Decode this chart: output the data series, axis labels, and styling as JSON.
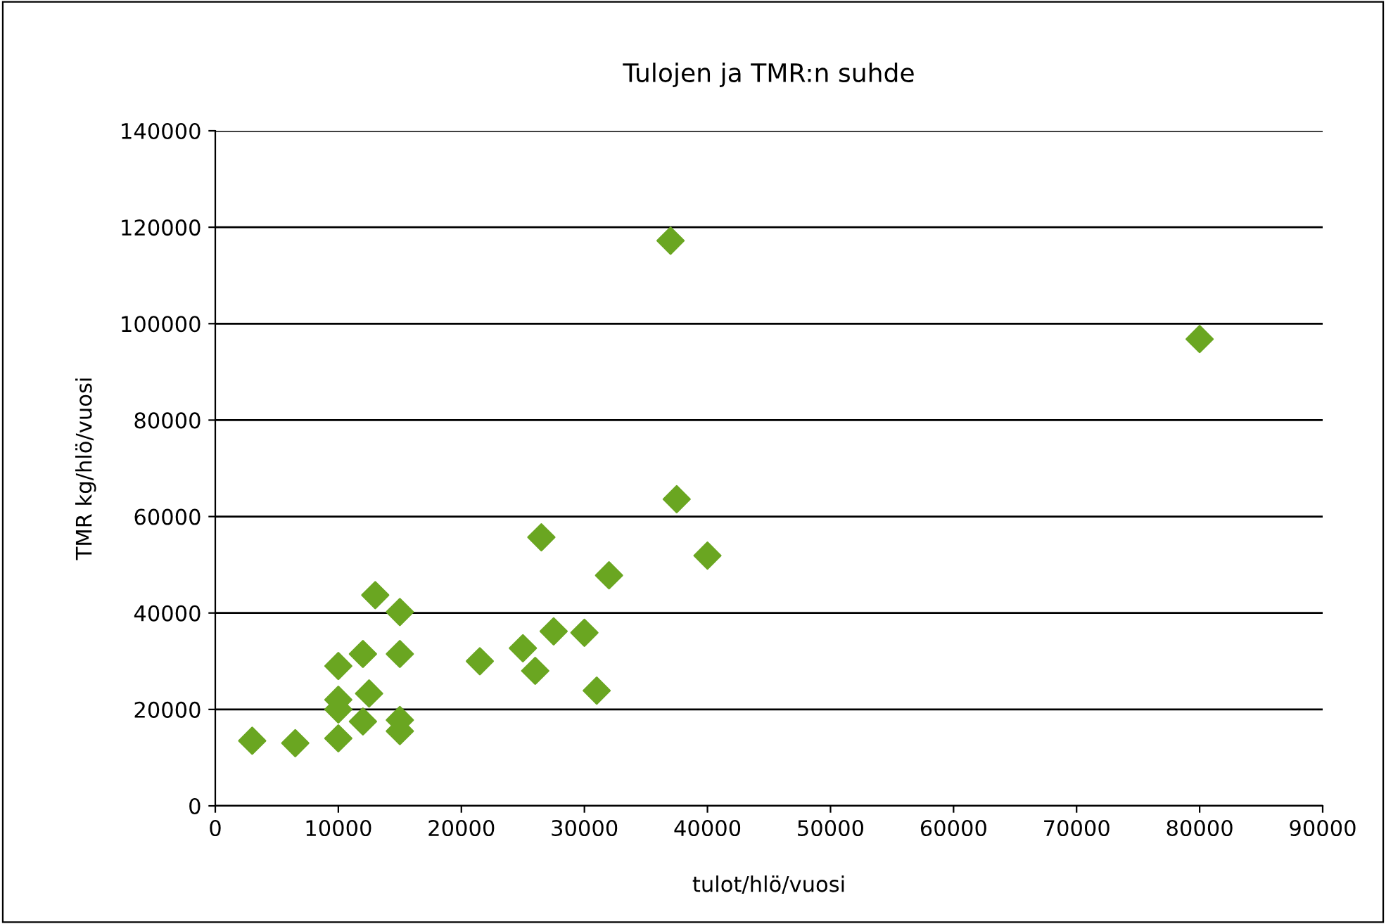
{
  "chart_data": {
    "type": "scatter",
    "title": "Tulojen ja TMR:n suhde",
    "xlabel": "tulot/hlö/vuosi",
    "ylabel": "TMR kg/hlö/vuosi",
    "x": [
      3000,
      6500,
      10000,
      10000,
      10000,
      10000,
      12000,
      12500,
      12000,
      13000,
      15000,
      15000,
      15000,
      15000,
      21500,
      25000,
      26000,
      26500,
      27500,
      30000,
      31000,
      32000,
      37000,
      37500,
      40000,
      80000
    ],
    "series": [
      {
        "color": "#6aa621",
        "values": [
          13500,
          13000,
          14000,
          20000,
          22000,
          29000,
          31500,
          23300,
          17500,
          43700,
          31500,
          40200,
          17800,
          15500,
          30000,
          32700,
          28000,
          55700,
          36200,
          35900,
          23900,
          47800,
          117200,
          63600,
          51900,
          96800
        ]
      }
    ],
    "xlim": [
      0,
      90000
    ],
    "ylim": [
      0,
      140000
    ],
    "xticks": [
      0,
      10000,
      20000,
      30000,
      40000,
      50000,
      60000,
      70000,
      80000,
      90000
    ],
    "yticks": [
      0,
      20000,
      40000,
      60000,
      80000,
      100000,
      120000,
      140000
    ],
    "grid": "y",
    "marker": "diamond",
    "legend": false
  }
}
